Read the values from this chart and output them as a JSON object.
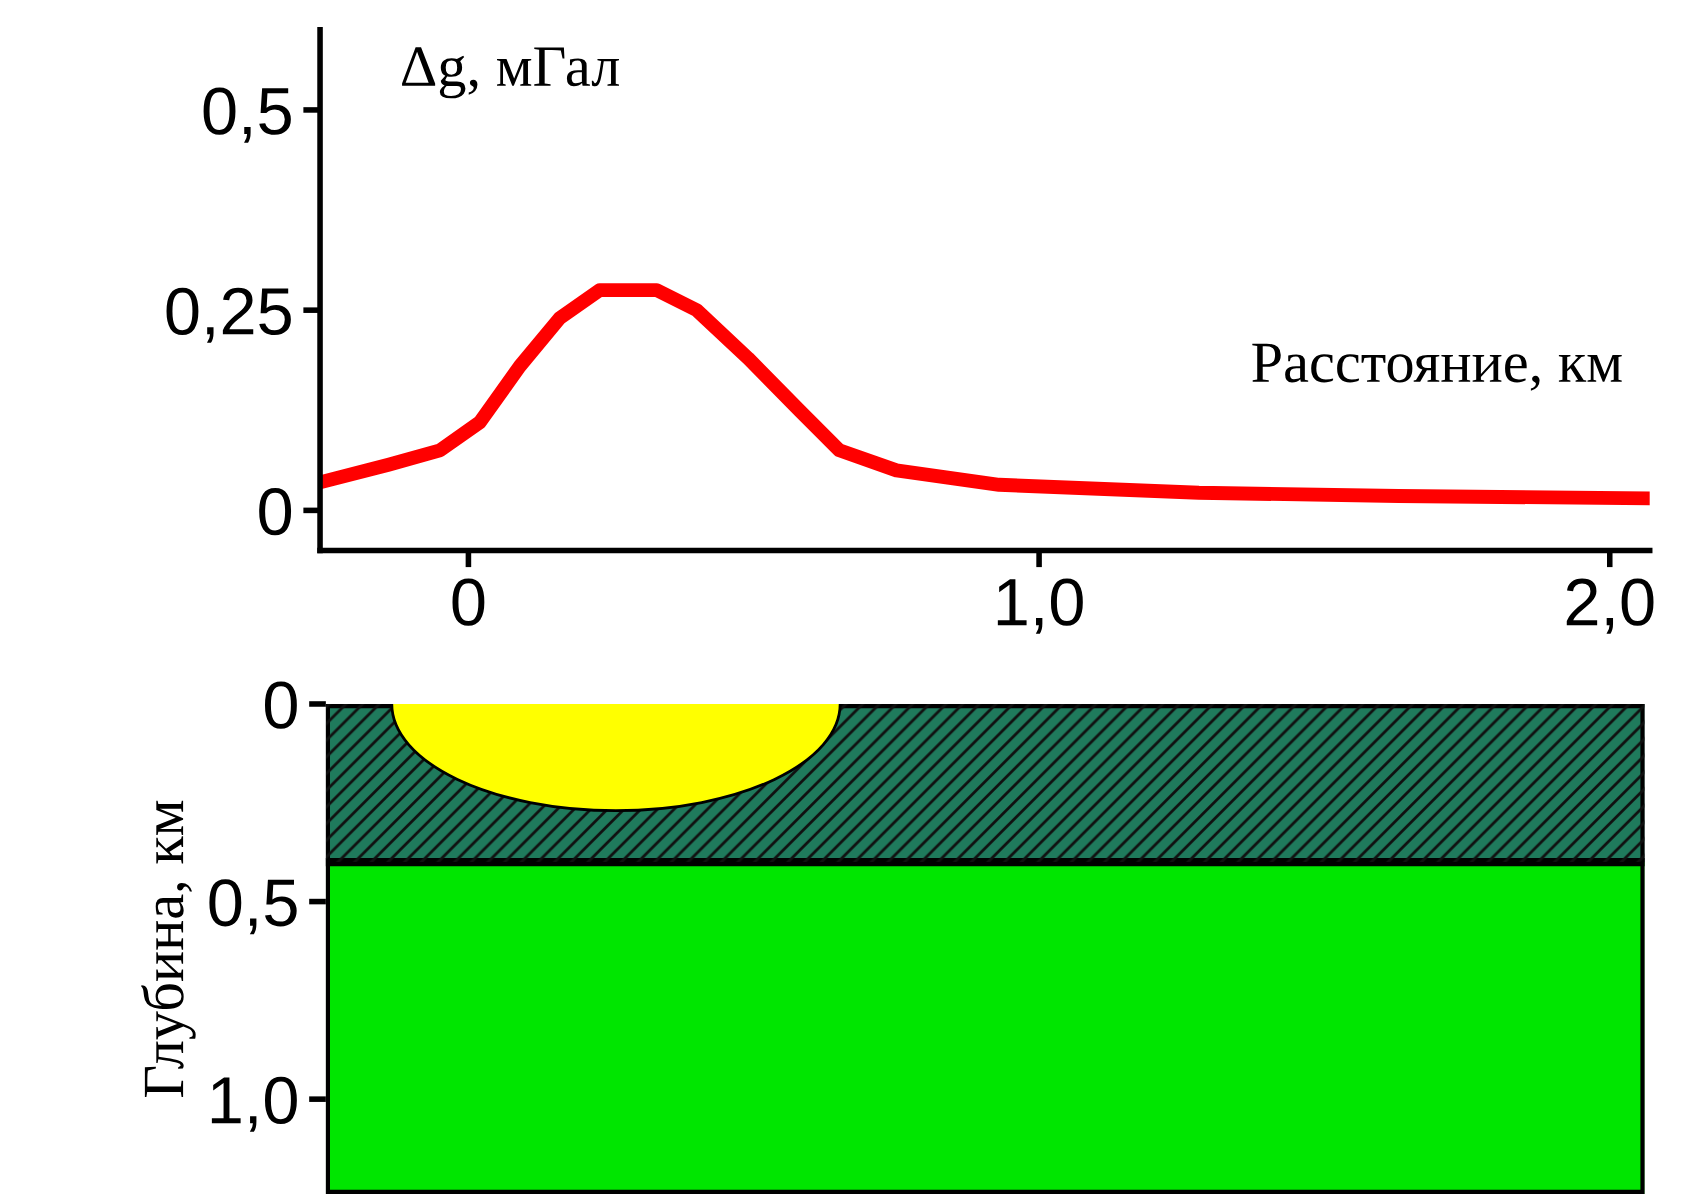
{
  "chart_data": [
    {
      "type": "line",
      "xlabel": "Расстояние, км",
      "ylabel": "Δg, мГал",
      "x": [
        -0.26,
        -0.14,
        -0.05,
        0.02,
        0.09,
        0.16,
        0.23,
        0.33,
        0.4,
        0.49,
        0.58,
        0.65,
        0.75,
        0.93,
        1.28,
        1.63,
        2.07
      ],
      "series": [
        {
          "color": "#ff0000",
          "values": [
            0.035,
            0.057,
            0.075,
            0.11,
            0.18,
            0.24,
            0.275,
            0.275,
            0.25,
            0.19,
            0.125,
            0.075,
            0.05,
            0.032,
            0.022,
            0.018,
            0.015
          ]
        }
      ],
      "xlim": [
        -0.26,
        2.07
      ],
      "ylim": [
        -0.05,
        0.6
      ],
      "xticks": [
        0,
        {
          "value": 1,
          "label": "1,0"
        },
        {
          "value": 2,
          "label": "2,0"
        }
      ],
      "yticks": [
        0,
        {
          "value": 0.25,
          "label": "0,25"
        },
        {
          "value": 0.5,
          "label": "0,5"
        }
      ],
      "grid": false,
      "marker": "none",
      "line_style": "solid"
    },
    {
      "type": "bar",
      "stacked": true,
      "ylabel": "Глубина, км",
      "categories": [
        null
      ],
      "series": [
        {
          "color": "#1f7a5c",
          "values": [
            0.4
          ]
        },
        {
          "color": "#00e600",
          "values": [
            0.84
          ]
        }
      ],
      "ylim": [
        1.24,
        0
      ],
      "yticks": [
        0,
        {
          "value": 0.5,
          "label": "0,5"
        },
        {
          "value": 1,
          "label": "1,0"
        }
      ],
      "tick_labels": "y"
    }
  ]
}
